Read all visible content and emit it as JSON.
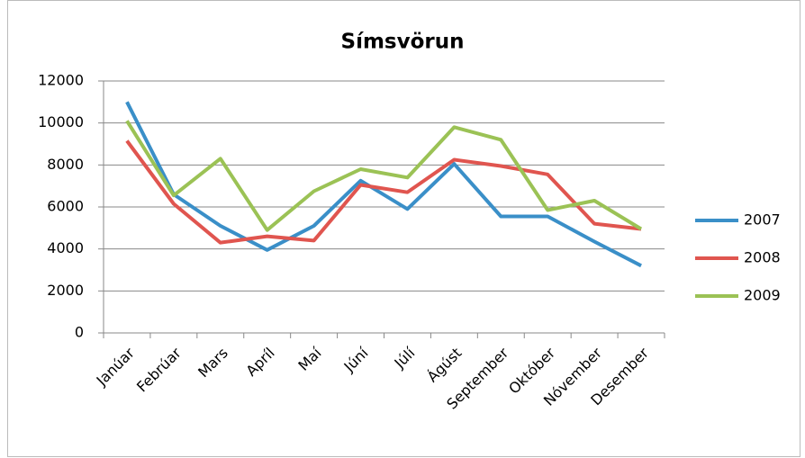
{
  "chart_data": {
    "type": "line",
    "title": "Símsvörun",
    "categories": [
      "Janúar",
      "Febrúar",
      "Mars",
      "Apríl",
      "Maí",
      "Júní",
      "Júlí",
      "Ágúst",
      "September",
      "Október",
      "Nóvember",
      "Desember"
    ],
    "series": [
      {
        "name": "2007",
        "color": "#3a8fc8",
        "values": [
          11000,
          6600,
          5100,
          3950,
          5100,
          7250,
          5900,
          8050,
          5550,
          5550,
          4350,
          3200
        ]
      },
      {
        "name": "2008",
        "color": "#e0554f",
        "values": [
          9150,
          6150,
          4300,
          4600,
          4400,
          7050,
          6700,
          8250,
          7950,
          7550,
          5200,
          4950
        ]
      },
      {
        "name": "2009",
        "color": "#9bc255",
        "values": [
          10100,
          6550,
          8300,
          4900,
          6750,
          7800,
          7400,
          9800,
          9200,
          5850,
          6300,
          4950
        ]
      }
    ],
    "ylim": [
      0,
      12000
    ],
    "yticks": [
      0,
      2000,
      4000,
      6000,
      8000,
      10000,
      12000
    ],
    "grid": true,
    "legend": "right"
  }
}
